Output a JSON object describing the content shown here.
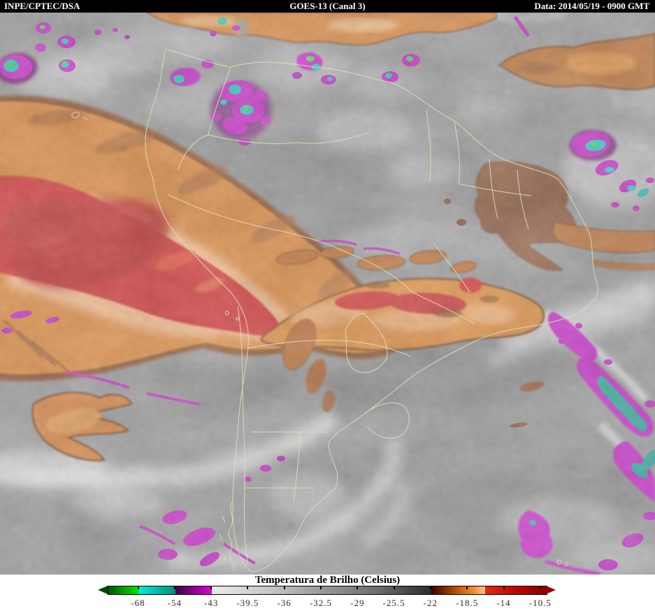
{
  "header": {
    "left": "INPE/CPTEC/DSA",
    "center": "GOES-13 (Canal 3)",
    "right": "Data: 2014/05/19 - 0900 GMT",
    "bg": "#000000",
    "fg": "#ffffff"
  },
  "colorbar": {
    "title": "Temperatura de Brilho (Celsius)",
    "ticks": [
      "-68",
      "-54",
      "-43",
      "-39.5",
      "-36",
      "-32.5",
      "-29",
      "-25.5",
      "-22",
      "-18.5",
      "-14",
      "-10.5"
    ],
    "tick_values": [
      -68,
      -54,
      -43,
      -39.5,
      -36,
      -32.5,
      -29,
      -25.5,
      -22,
      -18.5,
      -14,
      -10.5
    ],
    "arrow_left_color": "#004a00",
    "arrow_right_color": "#9b0000",
    "segments": [
      {
        "family": "green",
        "pct": [
          0,
          6.9
        ],
        "colors": [
          "#005200",
          "#00a000",
          "#00e800"
        ]
      },
      {
        "family": "cyan",
        "pct": [
          6.9,
          15.3
        ],
        "colors": [
          "#00eede",
          "#00bcaa",
          "#00917c"
        ]
      },
      {
        "family": "magenta",
        "pct": [
          15.3,
          23.6
        ],
        "colors": [
          "#42003f",
          "#8c008c",
          "#e000e0"
        ]
      },
      {
        "family": "gray",
        "pct": [
          23.6,
          73.7
        ],
        "colors": [
          "#ececec",
          "#c8c8c8",
          "#9a9a9a",
          "#6e6e6e",
          "#2c2c2c"
        ]
      },
      {
        "family": "orange",
        "pct": [
          73.7,
          86
        ],
        "colors": [
          "#3c0000",
          "#7a2e00",
          "#c05a08",
          "#f08226",
          "#ffc896"
        ]
      },
      {
        "family": "red",
        "pct": [
          86,
          100
        ],
        "colors": [
          "#e62814",
          "#bb0602",
          "#8c0000"
        ]
      }
    ]
  },
  "map": {
    "overlay_border_color": "#dedeb8",
    "palette": {
      "cold_green": "#38d83c",
      "cold_cyan": "#00c8b8",
      "cold_magenta": "#cc00cc",
      "dry_orange": "#e07414",
      "dry_red": "#d40e0e",
      "dry_peach": "#ffb77e",
      "moist_gray": "#8d8d8d"
    }
  }
}
